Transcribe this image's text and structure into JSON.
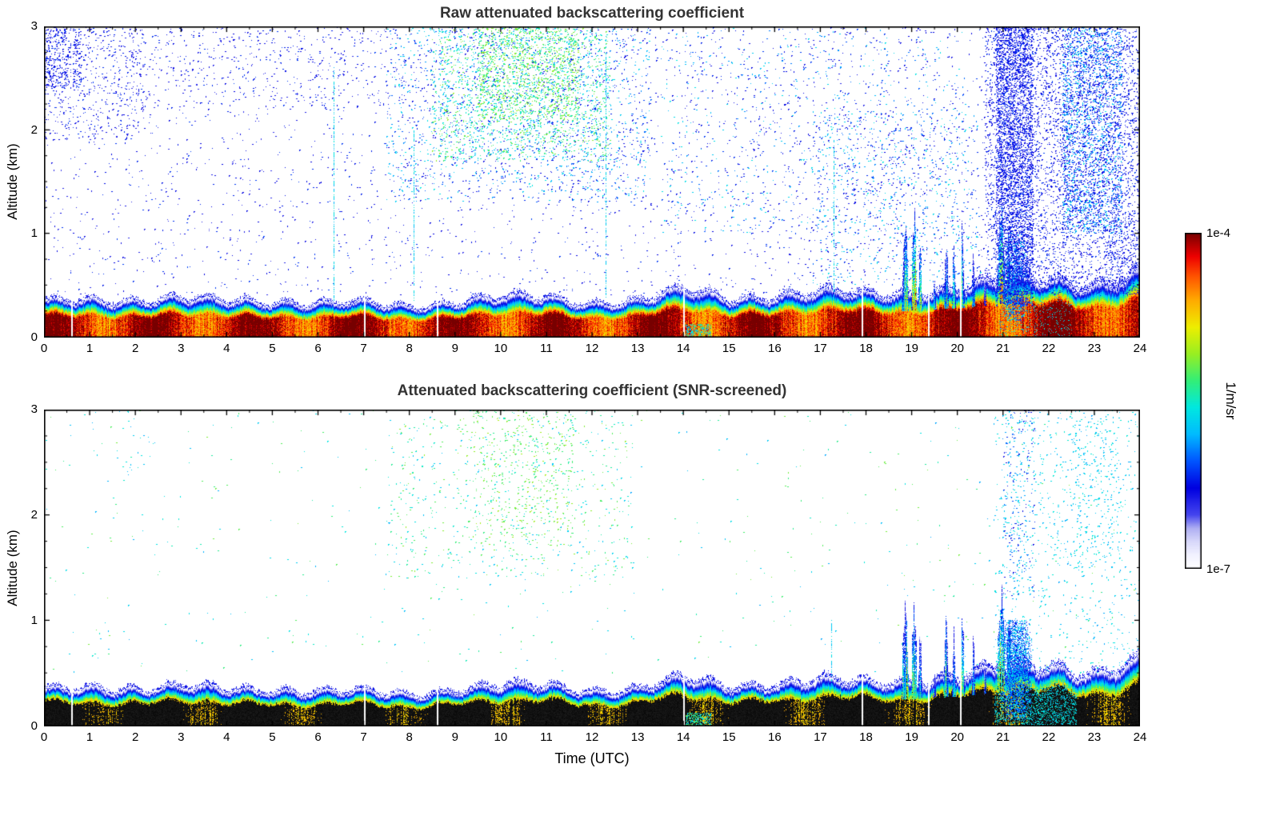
{
  "figure": {
    "background": "#ffffff"
  },
  "colorbar": {
    "max_label": "1e-4",
    "min_label": "1e-7",
    "units_label": "1/m/sr",
    "scale": "log",
    "stops": [
      {
        "t": 0.0,
        "c": "#ffffff"
      },
      {
        "t": 0.04,
        "c": "#f2f2ff"
      },
      {
        "t": 0.08,
        "c": "#d8d8fa"
      },
      {
        "t": 0.12,
        "c": "#aeaef2"
      },
      {
        "t": 0.16,
        "c": "#4444ee"
      },
      {
        "t": 0.24,
        "c": "#0000e0"
      },
      {
        "t": 0.32,
        "c": "#0055ff"
      },
      {
        "t": 0.4,
        "c": "#00bbff"
      },
      {
        "t": 0.48,
        "c": "#00e8e0"
      },
      {
        "t": 0.56,
        "c": "#33ee77"
      },
      {
        "t": 0.64,
        "c": "#99ee22"
      },
      {
        "t": 0.72,
        "c": "#eeee00"
      },
      {
        "t": 0.8,
        "c": "#ffaa00"
      },
      {
        "t": 0.87,
        "c": "#ff5500"
      },
      {
        "t": 0.93,
        "c": "#ee0000"
      },
      {
        "t": 1.0,
        "c": "#770000"
      }
    ]
  },
  "chart_data": [
    {
      "type": "heatmap",
      "title": "Raw attenuated backscattering coefficient",
      "xlabel": "",
      "ylabel": "Altitude (km)",
      "xlim": [
        0,
        24
      ],
      "ylim": [
        0,
        3
      ],
      "xticks": [
        0,
        1,
        2,
        3,
        4,
        5,
        6,
        7,
        8,
        9,
        10,
        11,
        12,
        13,
        14,
        15,
        16,
        17,
        18,
        19,
        20,
        21,
        22,
        23,
        24
      ],
      "yticks": [
        0,
        1,
        2,
        3
      ],
      "value_scale": "log",
      "value_min": 1e-07,
      "value_max": 0.0001,
      "value_units": "1/m/sr",
      "layer_core": "darkred",
      "boundary_layer_top_km": [
        0.25,
        0.28,
        0.26,
        0.27,
        0.26,
        0.26,
        0.24,
        0.24,
        0.22,
        0.26,
        0.28,
        0.28,
        0.25,
        0.26,
        0.33,
        0.28,
        0.3,
        0.32,
        0.3,
        0.32,
        0.35,
        0.4,
        0.42,
        0.38,
        0.45
      ],
      "data_gap_times_utc": [
        0.6,
        7.0,
        8.6,
        14.0,
        17.9,
        19.35,
        20.05
      ],
      "cloud_plumes": [
        {
          "t": 18.85,
          "halfwidth": 0.07,
          "top_km": 1.05,
          "intensity": 0.85
        },
        {
          "t": 19.05,
          "halfwidth": 0.06,
          "top_km": 1.1,
          "intensity": 0.95
        },
        {
          "t": 19.18,
          "halfwidth": 0.04,
          "top_km": 0.85,
          "intensity": 0.75
        },
        {
          "t": 19.5,
          "halfwidth": 0.04,
          "top_km": 0.55,
          "intensity": 0.6
        },
        {
          "t": 19.75,
          "halfwidth": 0.05,
          "top_km": 0.95,
          "intensity": 0.7
        },
        {
          "t": 19.92,
          "halfwidth": 0.04,
          "top_km": 0.85,
          "intensity": 0.65
        },
        {
          "t": 20.1,
          "halfwidth": 0.05,
          "top_km": 1.0,
          "intensity": 0.7
        },
        {
          "t": 20.35,
          "halfwidth": 0.04,
          "top_km": 0.8,
          "intensity": 0.6
        },
        {
          "t": 20.6,
          "halfwidth": 0.03,
          "top_km": 0.6,
          "intensity": 0.5
        },
        {
          "t": 20.95,
          "halfwidth": 0.09,
          "top_km": 1.2,
          "intensity": 1.0
        },
        {
          "t": 21.12,
          "halfwidth": 0.05,
          "top_km": 1.0,
          "intensity": 0.85
        }
      ],
      "precip_blob": {
        "t0": 21.0,
        "t1": 21.55,
        "z0_km": 0.15,
        "z1_km": 1.0,
        "density": 0.5,
        "palette": "blue-cyan"
      },
      "mottle": {
        "t0": 20.9,
        "t1": 22.5,
        "prob": 0.08
      },
      "surface_patches": [
        {
          "t0": 14.05,
          "t1": 14.6,
          "z1": 0.12,
          "palette": "cyan-green"
        }
      ],
      "noise_streaks": [
        {
          "t": 6.35,
          "z_top": 2.6
        },
        {
          "t": 8.1,
          "z_top": 2.0
        },
        {
          "t": 12.3,
          "z_top": 2.9
        },
        {
          "t": 17.3,
          "z_top": 1.9
        }
      ],
      "noise_regions": [
        {
          "t0": 0,
          "t1": 24,
          "z0": 0.4,
          "z1": 3.0,
          "density": 0.006,
          "palette": "blue"
        },
        {
          "t0": 0,
          "t1": 0.8,
          "z0": 2.4,
          "z1": 3.0,
          "density": 0.1,
          "palette": "blue"
        },
        {
          "t0": 0,
          "t1": 2.2,
          "z0": 1.9,
          "z1": 3.0,
          "density": 0.03,
          "palette": "blue"
        },
        {
          "t0": 2.0,
          "t1": 7.5,
          "z0": 2.2,
          "z1": 3.0,
          "density": 0.012,
          "palette": "blue"
        },
        {
          "t0": 7.5,
          "t1": 13.3,
          "z0": 1.3,
          "z1": 3.0,
          "density": 0.025,
          "palette": "blue-cyan"
        },
        {
          "t0": 8.5,
          "t1": 12.4,
          "z0": 1.7,
          "z1": 3.0,
          "density": 0.045,
          "palette": "green-cyan"
        },
        {
          "t0": 9.5,
          "t1": 11.7,
          "z0": 2.1,
          "z1": 3.0,
          "density": 0.065,
          "palette": "green"
        },
        {
          "t0": 13.5,
          "t1": 20.2,
          "z0": 1.0,
          "z1": 3.0,
          "density": 0.01,
          "palette": "blue-cyan"
        },
        {
          "t0": 16.8,
          "t1": 20.5,
          "z0": 0.5,
          "z1": 2.2,
          "density": 0.018,
          "palette": "blue-cyan"
        },
        {
          "t0": 20.6,
          "t1": 24.0,
          "z0": 0.4,
          "z1": 3.0,
          "density": 0.07,
          "palette": "blue"
        },
        {
          "t0": 20.85,
          "t1": 21.65,
          "z0": 0.3,
          "z1": 3.0,
          "density": 0.22,
          "palette": "blue"
        },
        {
          "t0": 22.3,
          "t1": 23.6,
          "z0": 1.0,
          "z1": 3.0,
          "density": 0.11,
          "palette": "blue-cyan"
        },
        {
          "t0": 23.3,
          "t1": 24.0,
          "z0": 0.4,
          "z1": 1.2,
          "density": 0.05,
          "palette": "blue"
        }
      ]
    },
    {
      "type": "heatmap",
      "title": "Attenuated backscattering coefficient (SNR-screened)",
      "xlabel": "Time (UTC)",
      "ylabel": "Altitude (km)",
      "xlim": [
        0,
        24
      ],
      "ylim": [
        0,
        3
      ],
      "xticks": [
        0,
        1,
        2,
        3,
        4,
        5,
        6,
        7,
        8,
        9,
        10,
        11,
        12,
        13,
        14,
        15,
        16,
        17,
        18,
        19,
        20,
        21,
        22,
        23,
        24
      ],
      "yticks": [
        0,
        1,
        2,
        3
      ],
      "value_scale": "log",
      "value_min": 1e-07,
      "value_max": 0.0001,
      "value_units": "1/m/sr",
      "layer_core": "black",
      "boundary_layer_top_km": [
        0.25,
        0.28,
        0.26,
        0.27,
        0.26,
        0.26,
        0.24,
        0.24,
        0.22,
        0.26,
        0.28,
        0.28,
        0.25,
        0.26,
        0.33,
        0.28,
        0.3,
        0.32,
        0.3,
        0.32,
        0.35,
        0.4,
        0.42,
        0.38,
        0.45
      ],
      "data_gap_times_utc": [
        0.6,
        7.0,
        8.6,
        14.0,
        17.9,
        19.35,
        20.05
      ],
      "cloud_plumes": [
        {
          "t": 18.85,
          "halfwidth": 0.07,
          "top_km": 1.05,
          "intensity": 0.85
        },
        {
          "t": 19.05,
          "halfwidth": 0.06,
          "top_km": 1.1,
          "intensity": 0.95
        },
        {
          "t": 19.18,
          "halfwidth": 0.04,
          "top_km": 0.85,
          "intensity": 0.75
        },
        {
          "t": 19.5,
          "halfwidth": 0.04,
          "top_km": 0.55,
          "intensity": 0.6
        },
        {
          "t": 19.75,
          "halfwidth": 0.05,
          "top_km": 0.95,
          "intensity": 0.7
        },
        {
          "t": 19.92,
          "halfwidth": 0.04,
          "top_km": 0.85,
          "intensity": 0.65
        },
        {
          "t": 20.1,
          "halfwidth": 0.05,
          "top_km": 1.0,
          "intensity": 0.7
        },
        {
          "t": 20.35,
          "halfwidth": 0.04,
          "top_km": 0.8,
          "intensity": 0.6
        },
        {
          "t": 20.6,
          "halfwidth": 0.03,
          "top_km": 0.6,
          "intensity": 0.5
        },
        {
          "t": 20.95,
          "halfwidth": 0.09,
          "top_km": 1.2,
          "intensity": 1.0
        },
        {
          "t": 21.12,
          "halfwidth": 0.05,
          "top_km": 1.0,
          "intensity": 0.85
        }
      ],
      "precip_blob": {
        "t0": 20.95,
        "t1": 21.65,
        "z0_km": 0.05,
        "z1_km": 1.0,
        "density": 0.65,
        "palette": "cyan-blue"
      },
      "mottle": {
        "t0": 20.8,
        "t1": 22.6,
        "prob": 0.28
      },
      "surface_patches": [
        {
          "t0": 14.05,
          "t1": 14.6,
          "z1": 0.12,
          "palette": "cyan-green"
        }
      ],
      "noise_streaks": [
        {
          "t": 17.25,
          "z_top": 1.0
        }
      ],
      "noise_regions": [
        {
          "t0": 0,
          "t1": 24,
          "z0": 0.5,
          "z1": 3.0,
          "density": 0.0013,
          "palette": "cyan-green"
        },
        {
          "t0": 7.5,
          "t1": 12.9,
          "z0": 1.4,
          "z1": 3.0,
          "density": 0.01,
          "palette": "green-cyan"
        },
        {
          "t0": 9.4,
          "t1": 11.6,
          "z0": 1.7,
          "z1": 3.0,
          "density": 0.02,
          "palette": "green"
        },
        {
          "t0": 20.8,
          "t1": 24.0,
          "z0": 0.5,
          "z1": 3.0,
          "density": 0.012,
          "palette": "cyan"
        },
        {
          "t0": 21.0,
          "t1": 21.7,
          "z0": 1.2,
          "z1": 3.0,
          "density": 0.028,
          "palette": "cyan-blue"
        },
        {
          "t0": 22.4,
          "t1": 23.6,
          "z0": 1.5,
          "z1": 3.0,
          "density": 0.018,
          "palette": "cyan"
        },
        {
          "t0": 1.0,
          "t1": 2.5,
          "z0": 2.3,
          "z1": 3.0,
          "density": 0.004,
          "palette": "cyan"
        }
      ]
    }
  ]
}
